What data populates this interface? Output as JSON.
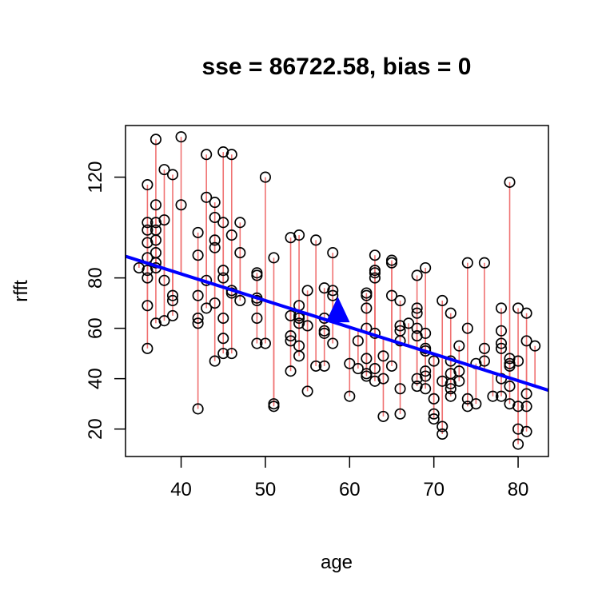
{
  "chart_data": {
    "type": "scatter",
    "title": "sse = 86722.58, bias = 0",
    "xlabel": "age",
    "ylabel": "rfft",
    "xlim": [
      33.4,
      83.6
    ],
    "ylim": [
      9.1,
      140.5
    ],
    "xticks": [
      40,
      50,
      60,
      70,
      80
    ],
    "yticks": [
      20,
      40,
      60,
      80,
      120
    ],
    "grid": false,
    "colors": {
      "points": "#000000",
      "residuals": "#f07272",
      "fit_line": "#0000ff",
      "centroid": "#0000ff"
    },
    "fit_line": {
      "intercept": 124.0,
      "slope": -1.06
    },
    "centroid": {
      "x": 58.6,
      "y": 64.3
    },
    "points": [
      {
        "x": 35,
        "y": 84
      },
      {
        "x": 36,
        "y": 117
      },
      {
        "x": 36,
        "y": 102
      },
      {
        "x": 36,
        "y": 99
      },
      {
        "x": 36,
        "y": 94
      },
      {
        "x": 36,
        "y": 88
      },
      {
        "x": 36,
        "y": 83
      },
      {
        "x": 36,
        "y": 80
      },
      {
        "x": 36,
        "y": 69
      },
      {
        "x": 36,
        "y": 52
      },
      {
        "x": 37,
        "y": 135
      },
      {
        "x": 37,
        "y": 109
      },
      {
        "x": 37,
        "y": 102
      },
      {
        "x": 37,
        "y": 99
      },
      {
        "x": 37,
        "y": 95
      },
      {
        "x": 37,
        "y": 90
      },
      {
        "x": 37,
        "y": 86
      },
      {
        "x": 37,
        "y": 84
      },
      {
        "x": 37,
        "y": 62
      },
      {
        "x": 38,
        "y": 123
      },
      {
        "x": 38,
        "y": 103
      },
      {
        "x": 38,
        "y": 79
      },
      {
        "x": 38,
        "y": 63
      },
      {
        "x": 39,
        "y": 121
      },
      {
        "x": 39,
        "y": 73
      },
      {
        "x": 39,
        "y": 71
      },
      {
        "x": 39,
        "y": 65
      },
      {
        "x": 40,
        "y": 136
      },
      {
        "x": 40,
        "y": 109
      },
      {
        "x": 42,
        "y": 98
      },
      {
        "x": 42,
        "y": 89
      },
      {
        "x": 42,
        "y": 73
      },
      {
        "x": 42,
        "y": 64
      },
      {
        "x": 42,
        "y": 62
      },
      {
        "x": 42,
        "y": 28
      },
      {
        "x": 43,
        "y": 129
      },
      {
        "x": 43,
        "y": 112
      },
      {
        "x": 43,
        "y": 79
      },
      {
        "x": 43,
        "y": 68
      },
      {
        "x": 44,
        "y": 110
      },
      {
        "x": 44,
        "y": 104
      },
      {
        "x": 44,
        "y": 95
      },
      {
        "x": 44,
        "y": 92
      },
      {
        "x": 44,
        "y": 70
      },
      {
        "x": 44,
        "y": 47
      },
      {
        "x": 45,
        "y": 130
      },
      {
        "x": 45,
        "y": 102
      },
      {
        "x": 45,
        "y": 83
      },
      {
        "x": 45,
        "y": 80
      },
      {
        "x": 45,
        "y": 64
      },
      {
        "x": 45,
        "y": 56
      },
      {
        "x": 45,
        "y": 50
      },
      {
        "x": 46,
        "y": 129
      },
      {
        "x": 46,
        "y": 97
      },
      {
        "x": 46,
        "y": 75
      },
      {
        "x": 46,
        "y": 74
      },
      {
        "x": 46,
        "y": 50
      },
      {
        "x": 47,
        "y": 102
      },
      {
        "x": 47,
        "y": 90
      },
      {
        "x": 47,
        "y": 71
      },
      {
        "x": 49,
        "y": 82
      },
      {
        "x": 49,
        "y": 81
      },
      {
        "x": 49,
        "y": 72
      },
      {
        "x": 49,
        "y": 71
      },
      {
        "x": 49,
        "y": 64
      },
      {
        "x": 49,
        "y": 54
      },
      {
        "x": 50,
        "y": 120
      },
      {
        "x": 50,
        "y": 54
      },
      {
        "x": 51,
        "y": 88
      },
      {
        "x": 51,
        "y": 30
      },
      {
        "x": 51,
        "y": 29
      },
      {
        "x": 53,
        "y": 96
      },
      {
        "x": 53,
        "y": 65
      },
      {
        "x": 53,
        "y": 57
      },
      {
        "x": 53,
        "y": 55
      },
      {
        "x": 53,
        "y": 43
      },
      {
        "x": 54,
        "y": 97
      },
      {
        "x": 54,
        "y": 69
      },
      {
        "x": 54,
        "y": 65
      },
      {
        "x": 54,
        "y": 64
      },
      {
        "x": 54,
        "y": 62
      },
      {
        "x": 54,
        "y": 53
      },
      {
        "x": 54,
        "y": 49
      },
      {
        "x": 55,
        "y": 75
      },
      {
        "x": 55,
        "y": 61
      },
      {
        "x": 55,
        "y": 35
      },
      {
        "x": 56,
        "y": 95
      },
      {
        "x": 56,
        "y": 45
      },
      {
        "x": 57,
        "y": 76
      },
      {
        "x": 57,
        "y": 64
      },
      {
        "x": 57,
        "y": 59
      },
      {
        "x": 57,
        "y": 58
      },
      {
        "x": 57,
        "y": 45
      },
      {
        "x": 58,
        "y": 90
      },
      {
        "x": 58,
        "y": 75
      },
      {
        "x": 58,
        "y": 73
      },
      {
        "x": 58,
        "y": 54
      },
      {
        "x": 60,
        "y": 46
      },
      {
        "x": 60,
        "y": 33
      },
      {
        "x": 61,
        "y": 55
      },
      {
        "x": 61,
        "y": 44
      },
      {
        "x": 62,
        "y": 74
      },
      {
        "x": 62,
        "y": 73
      },
      {
        "x": 62,
        "y": 68
      },
      {
        "x": 62,
        "y": 60
      },
      {
        "x": 62,
        "y": 48
      },
      {
        "x": 62,
        "y": 42
      },
      {
        "x": 62,
        "y": 41
      },
      {
        "x": 63,
        "y": 89
      },
      {
        "x": 63,
        "y": 83
      },
      {
        "x": 63,
        "y": 82
      },
      {
        "x": 63,
        "y": 80
      },
      {
        "x": 63,
        "y": 58
      },
      {
        "x": 63,
        "y": 44
      },
      {
        "x": 63,
        "y": 39
      },
      {
        "x": 64,
        "y": 49
      },
      {
        "x": 64,
        "y": 40
      },
      {
        "x": 64,
        "y": 25
      },
      {
        "x": 65,
        "y": 87
      },
      {
        "x": 65,
        "y": 86
      },
      {
        "x": 65,
        "y": 73
      },
      {
        "x": 65,
        "y": 45
      },
      {
        "x": 66,
        "y": 71
      },
      {
        "x": 66,
        "y": 61
      },
      {
        "x": 66,
        "y": 59
      },
      {
        "x": 66,
        "y": 55
      },
      {
        "x": 66,
        "y": 36
      },
      {
        "x": 66,
        "y": 26
      },
      {
        "x": 67,
        "y": 62
      },
      {
        "x": 68,
        "y": 81
      },
      {
        "x": 68,
        "y": 68
      },
      {
        "x": 68,
        "y": 66
      },
      {
        "x": 68,
        "y": 60
      },
      {
        "x": 68,
        "y": 57
      },
      {
        "x": 68,
        "y": 40
      },
      {
        "x": 68,
        "y": 37
      },
      {
        "x": 69,
        "y": 84
      },
      {
        "x": 69,
        "y": 58
      },
      {
        "x": 69,
        "y": 52
      },
      {
        "x": 69,
        "y": 51
      },
      {
        "x": 69,
        "y": 43
      },
      {
        "x": 69,
        "y": 41
      },
      {
        "x": 69,
        "y": 36
      },
      {
        "x": 70,
        "y": 47
      },
      {
        "x": 70,
        "y": 32
      },
      {
        "x": 70,
        "y": 26
      },
      {
        "x": 70,
        "y": 24
      },
      {
        "x": 71,
        "y": 71
      },
      {
        "x": 71,
        "y": 39
      },
      {
        "x": 71,
        "y": 21
      },
      {
        "x": 71,
        "y": 18
      },
      {
        "x": 72,
        "y": 66
      },
      {
        "x": 72,
        "y": 47
      },
      {
        "x": 72,
        "y": 42
      },
      {
        "x": 72,
        "y": 38
      },
      {
        "x": 72,
        "y": 36
      },
      {
        "x": 72,
        "y": 33
      },
      {
        "x": 73,
        "y": 53
      },
      {
        "x": 73,
        "y": 43
      },
      {
        "x": 73,
        "y": 39
      },
      {
        "x": 74,
        "y": 86
      },
      {
        "x": 74,
        "y": 60
      },
      {
        "x": 74,
        "y": 32
      },
      {
        "x": 74,
        "y": 29
      },
      {
        "x": 75,
        "y": 46
      },
      {
        "x": 75,
        "y": 30
      },
      {
        "x": 76,
        "y": 86
      },
      {
        "x": 76,
        "y": 52
      },
      {
        "x": 76,
        "y": 47
      },
      {
        "x": 77,
        "y": 33
      },
      {
        "x": 78,
        "y": 68
      },
      {
        "x": 78,
        "y": 59
      },
      {
        "x": 78,
        "y": 54
      },
      {
        "x": 78,
        "y": 52
      },
      {
        "x": 78,
        "y": 40
      },
      {
        "x": 78,
        "y": 33
      },
      {
        "x": 79,
        "y": 118
      },
      {
        "x": 79,
        "y": 48
      },
      {
        "x": 79,
        "y": 46
      },
      {
        "x": 79,
        "y": 45
      },
      {
        "x": 79,
        "y": 37
      },
      {
        "x": 79,
        "y": 30
      },
      {
        "x": 80,
        "y": 68
      },
      {
        "x": 80,
        "y": 47
      },
      {
        "x": 80,
        "y": 29
      },
      {
        "x": 80,
        "y": 20
      },
      {
        "x": 80,
        "y": 14
      },
      {
        "x": 81,
        "y": 66
      },
      {
        "x": 81,
        "y": 55
      },
      {
        "x": 81,
        "y": 34
      },
      {
        "x": 81,
        "y": 29
      },
      {
        "x": 81,
        "y": 19
      },
      {
        "x": 82,
        "y": 53
      }
    ]
  }
}
